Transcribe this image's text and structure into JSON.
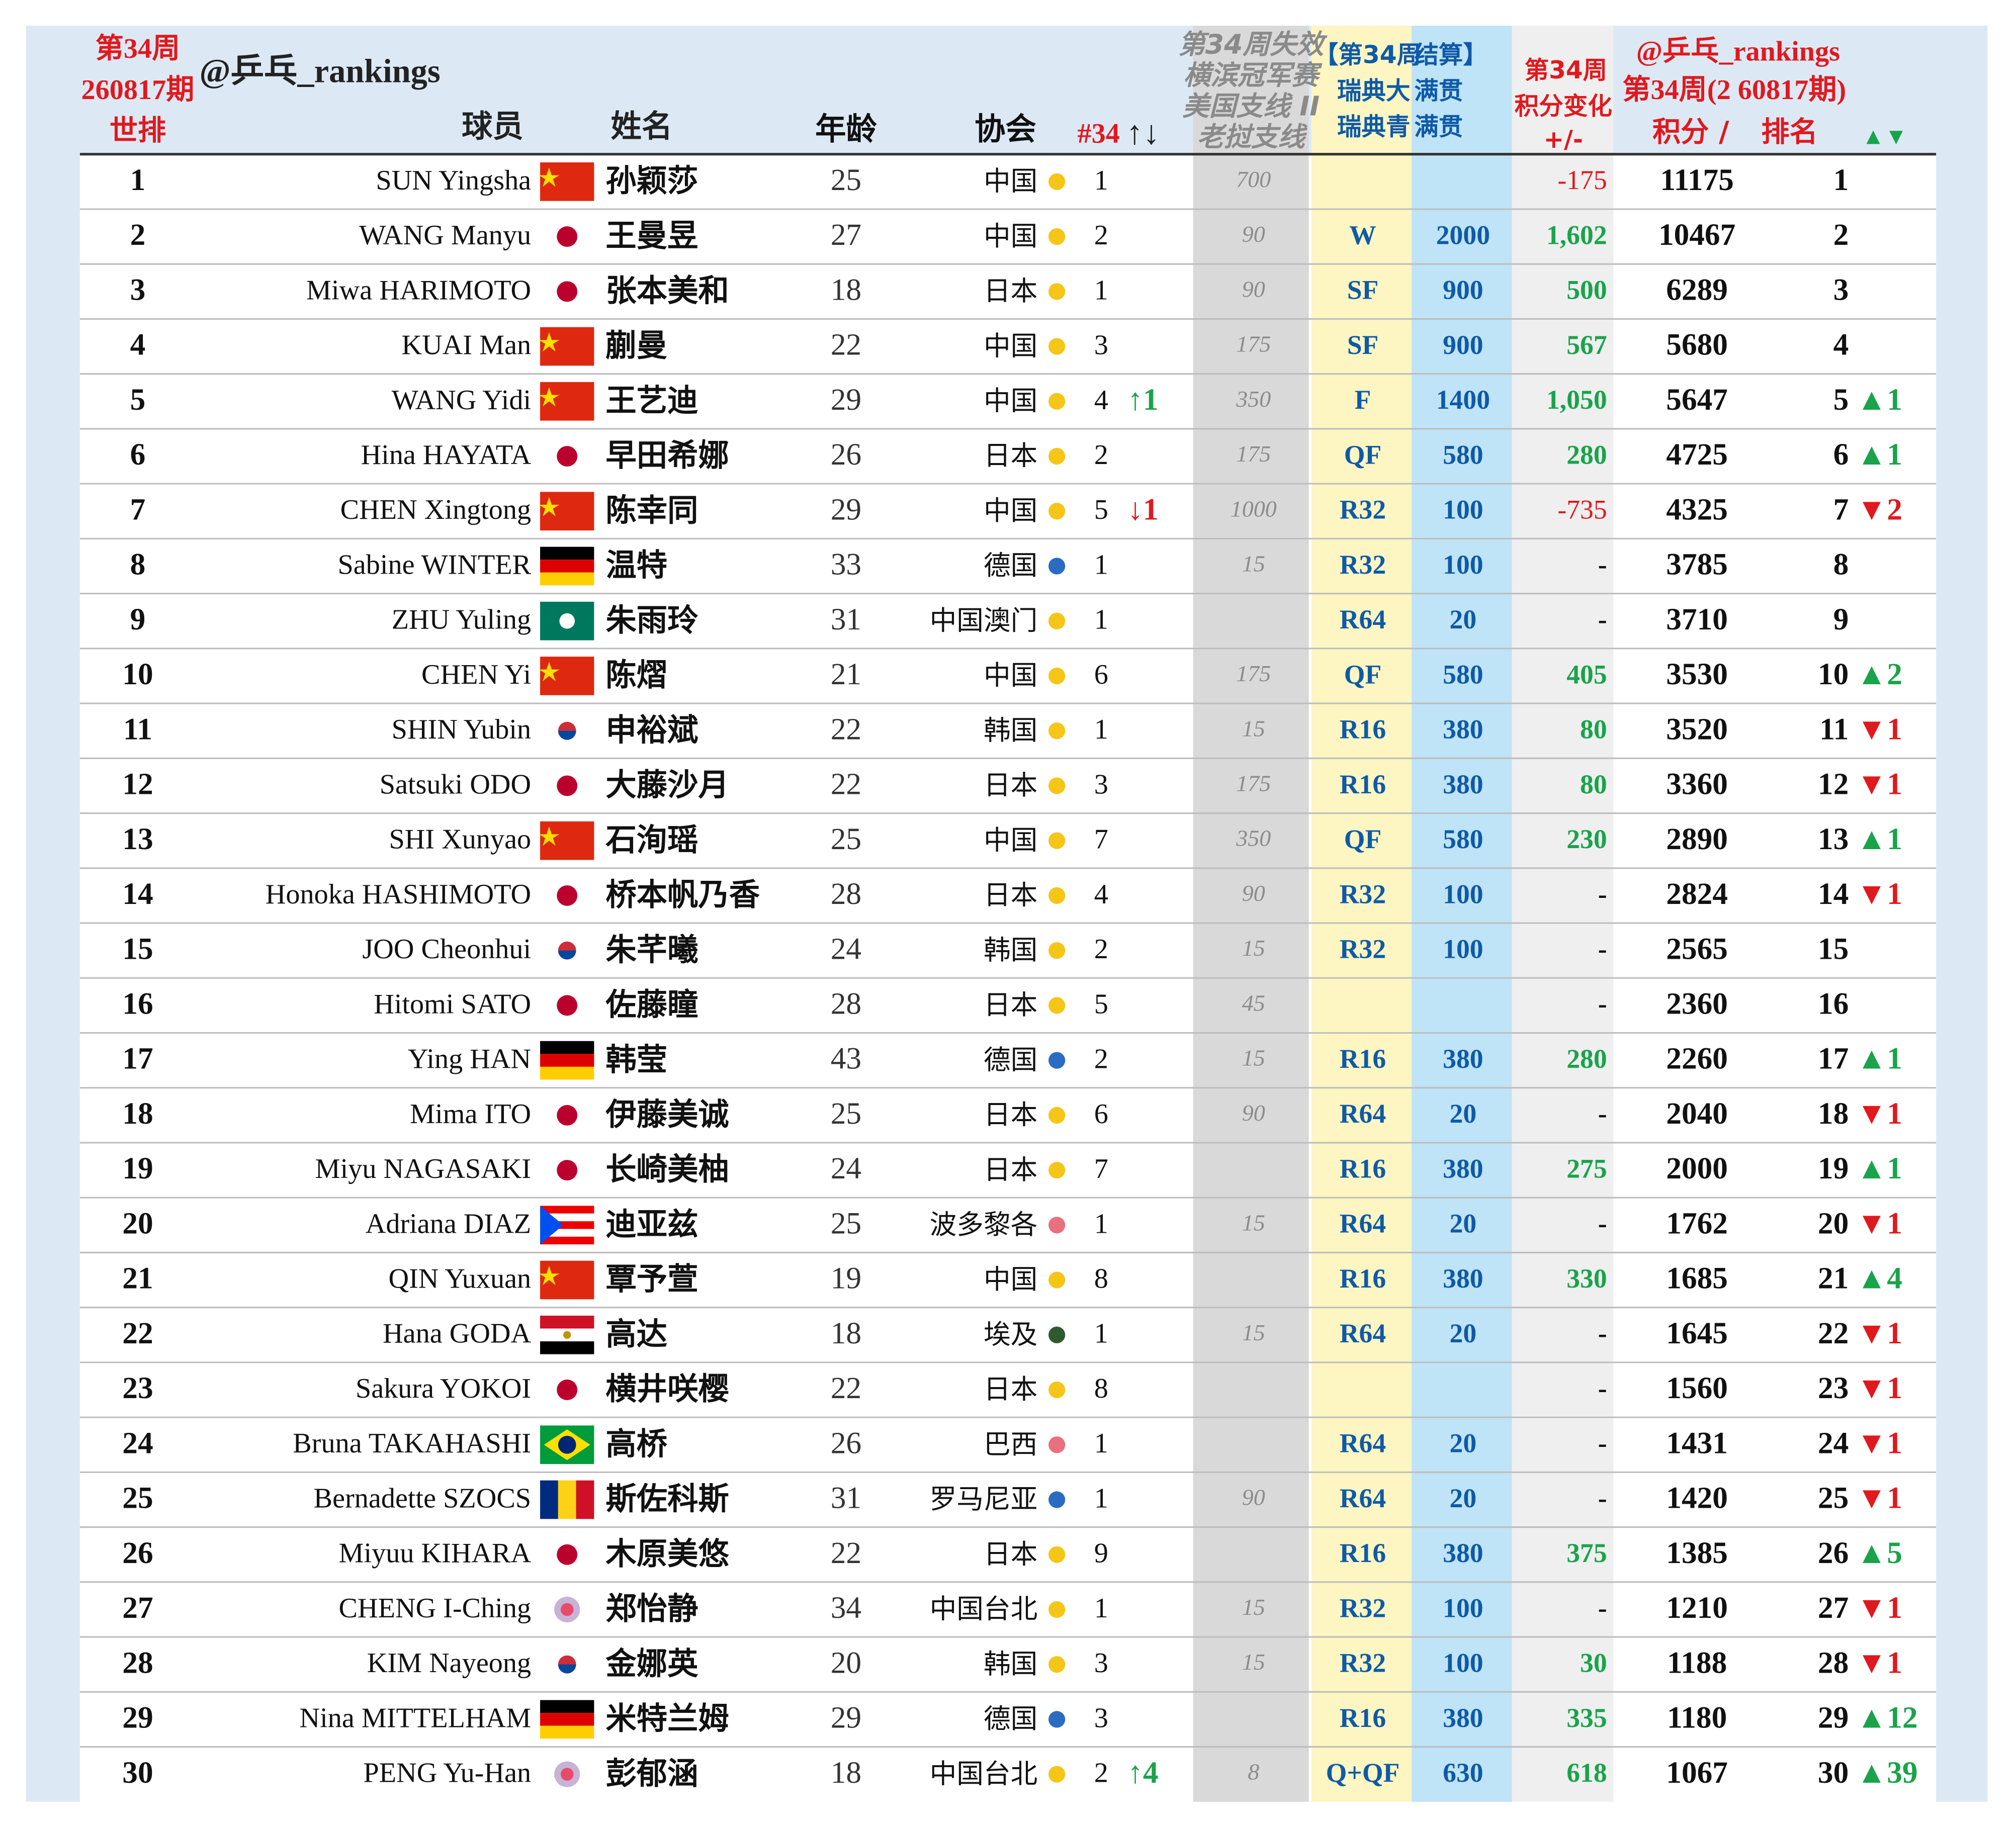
{
  "header": {
    "week_label": "第34周",
    "issue": "260817期",
    "world_rank": "世排",
    "account": "@乒乓_rankings",
    "col_player": "球员",
    "col_name": "姓名",
    "col_age": "年龄",
    "col_assoc": "协会",
    "col_assoc_rank": "#34",
    "col_move": "↑↓",
    "expire_header": [
      "第34周失效",
      "横滨冠军赛",
      "美国支线 II",
      "老挝支线"
    ],
    "result_header": [
      "【第34周",
      "结算】",
      "瑞典大",
      "满贯",
      "瑞典青",
      "满贯"
    ],
    "change_header": [
      "第34周",
      "积分变化",
      "+/-"
    ],
    "right_header": [
      "@乒乓_rankings",
      "第34周(2 60817期)",
      "积分 /",
      "排名",
      "▲▼"
    ]
  },
  "table": {
    "rows": [
      [
        1,
        "SUN Yingsha",
        "孙颖莎",
        25,
        "中国",
        1,
        null,
        700,
        null,
        null,
        -175,
        11175,
        1,
        null
      ],
      [
        2,
        "WANG Manyu",
        "王曼昱",
        27,
        "中国",
        2,
        null,
        90,
        "W",
        2000,
        "1,602",
        10467,
        2,
        null
      ],
      [
        3,
        "Miwa HARIMOTO",
        "张本美和",
        18,
        "日本",
        1,
        null,
        90,
        "SF",
        900,
        500,
        6289,
        3,
        null
      ],
      [
        4,
        "KUAI Man",
        "蒯曼",
        22,
        "中国",
        3,
        null,
        175,
        "SF",
        900,
        567,
        5680,
        4,
        null
      ],
      [
        5,
        "WANG Yidi",
        "王艺迪",
        29,
        "中国",
        4,
        "↑1",
        350,
        "F",
        1400,
        "1,050",
        5647,
        5,
        "▲1"
      ],
      [
        6,
        "Hina HAYATA",
        "早田希娜",
        26,
        "日本",
        2,
        null,
        175,
        "QF",
        580,
        280,
        4725,
        6,
        "▲1"
      ],
      [
        7,
        "CHEN Xingtong",
        "陈幸同",
        29,
        "中国",
        5,
        "↓1",
        1000,
        "R32",
        100,
        -735,
        4325,
        7,
        "▼2"
      ],
      [
        8,
        "Sabine WINTER",
        "温特",
        33,
        "德国",
        1,
        null,
        15,
        "R32",
        100,
        "-",
        3785,
        8,
        null
      ],
      [
        9,
        "ZHU Yuling",
        "朱雨玲",
        31,
        "中国澳门",
        1,
        null,
        null,
        "R64",
        20,
        "-",
        3710,
        9,
        null
      ],
      [
        10,
        "CHEN Yi",
        "陈熠",
        21,
        "中国",
        6,
        null,
        175,
        "QF",
        580,
        405,
        3530,
        10,
        "▲2"
      ],
      [
        11,
        "SHIN Yubin",
        "申裕斌",
        22,
        "韩国",
        1,
        null,
        15,
        "R16",
        380,
        80,
        3520,
        11,
        "▼1"
      ],
      [
        12,
        "Satsuki ODO",
        "大藤沙月",
        22,
        "日本",
        3,
        null,
        175,
        "R16",
        380,
        80,
        3360,
        12,
        "▼1"
      ],
      [
        13,
        "SHI Xunyao",
        "石洵瑶",
        25,
        "中国",
        7,
        null,
        350,
        "QF",
        580,
        230,
        2890,
        13,
        "▲1"
      ],
      [
        14,
        "Honoka HASHIMOTO",
        "桥本帆乃香",
        28,
        "日本",
        4,
        null,
        90,
        "R32",
        100,
        "-",
        2824,
        14,
        "▼1"
      ],
      [
        15,
        "JOO Cheonhui",
        "朱芊曦",
        24,
        "韩国",
        2,
        null,
        15,
        "R32",
        100,
        "-",
        2565,
        15,
        null
      ],
      [
        16,
        "Hitomi SATO",
        "佐藤瞳",
        28,
        "日本",
        5,
        null,
        45,
        null,
        null,
        "-",
        2360,
        16,
        null
      ],
      [
        17,
        "Ying HAN",
        "韩莹",
        43,
        "德国",
        2,
        null,
        15,
        "R16",
        380,
        280,
        2260,
        17,
        "▲1"
      ],
      [
        18,
        "Mima ITO",
        "伊藤美诚",
        25,
        "日本",
        6,
        null,
        90,
        "R64",
        20,
        "-",
        2040,
        18,
        "▼1"
      ],
      [
        19,
        "Miyu NAGASAKI",
        "长崎美柚",
        24,
        "日本",
        7,
        null,
        null,
        "R16",
        380,
        275,
        2000,
        19,
        "▲1"
      ],
      [
        20,
        "Adriana DIAZ",
        "迪亚兹",
        25,
        "波多黎各",
        1,
        null,
        15,
        "R64",
        20,
        "-",
        1762,
        20,
        "▼1"
      ],
      [
        21,
        "QIN Yuxuan",
        "覃予萱",
        19,
        "中国",
        8,
        null,
        null,
        "R16",
        380,
        330,
        1685,
        21,
        "▲4"
      ],
      [
        22,
        "Hana GODA",
        "高达",
        18,
        "埃及",
        1,
        null,
        15,
        "R64",
        20,
        "-",
        1645,
        22,
        "▼1"
      ],
      [
        23,
        "Sakura YOKOI",
        "横井咲樱",
        22,
        "日本",
        8,
        null,
        null,
        null,
        null,
        "-",
        1560,
        23,
        "▼1"
      ],
      [
        24,
        "Bruna TAKAHASHI",
        "高桥",
        26,
        "巴西",
        1,
        null,
        null,
        "R64",
        20,
        "-",
        1431,
        24,
        "▼1"
      ],
      [
        25,
        "Bernadette SZOCS",
        "斯佐科斯",
        31,
        "罗马尼亚",
        1,
        null,
        90,
        "R64",
        20,
        "-",
        1420,
        25,
        "▼1"
      ],
      [
        26,
        "Miyuu KIHARA",
        "木原美悠",
        22,
        "日本",
        9,
        null,
        null,
        "R16",
        380,
        375,
        1385,
        26,
        "▲5"
      ],
      [
        27,
        "CHENG I-Ching",
        "郑怡静",
        34,
        "中国台北",
        1,
        null,
        15,
        "R32",
        100,
        "-",
        1210,
        27,
        "▼1"
      ],
      [
        28,
        "KIM Nayeong",
        "金娜英",
        20,
        "韩国",
        3,
        null,
        15,
        "R32",
        100,
        30,
        1188,
        28,
        "▼1"
      ],
      [
        29,
        "Nina MITTELHAM",
        "米特兰姆",
        29,
        "德国",
        3,
        null,
        null,
        "R16",
        380,
        335,
        1180,
        29,
        "▲12"
      ],
      [
        30,
        "PENG Yu-Han",
        "彭郁涵",
        18,
        "中国台北",
        2,
        "↑4",
        8,
        "Q+QF",
        630,
        618,
        1067,
        30,
        "▲39"
      ]
    ]
  }
}
